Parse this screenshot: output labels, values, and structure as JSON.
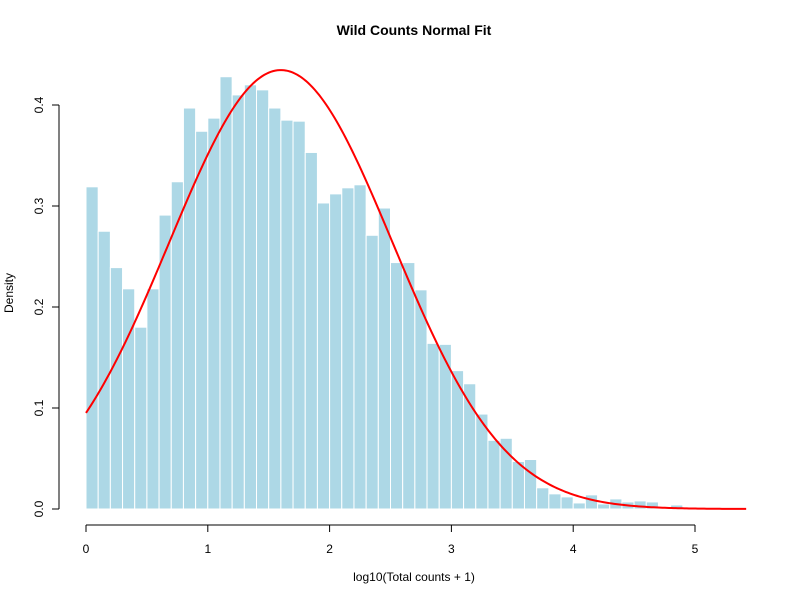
{
  "chart_data": {
    "type": "bar",
    "title": "Wild Counts Normal Fit",
    "xlabel": "log10(Total counts + 1)",
    "ylabel": "Density",
    "xlim": [
      0,
      5.42
    ],
    "ylim": [
      0,
      0.435
    ],
    "x_ticks": [
      "0",
      "1",
      "2",
      "3",
      "4",
      "5"
    ],
    "y_ticks": [
      "0.0",
      "0.1",
      "0.2",
      "0.3",
      "0.4"
    ],
    "bin_width": 0.1,
    "bin_start": 0.0,
    "histogram_density": [
      0.319,
      0.275,
      0.239,
      0.218,
      0.18,
      0.218,
      0.291,
      0.324,
      0.397,
      0.374,
      0.387,
      0.428,
      0.41,
      0.42,
      0.415,
      0.397,
      0.385,
      0.384,
      0.353,
      0.303,
      0.312,
      0.318,
      0.321,
      0.271,
      0.298,
      0.244,
      0.244,
      0.217,
      0.164,
      0.163,
      0.137,
      0.124,
      0.094,
      0.068,
      0.07,
      0.047,
      0.049,
      0.021,
      0.015,
      0.012,
      0.006,
      0.014,
      0.005,
      0.01,
      0.007,
      0.008,
      0.007,
      0.0,
      0.004,
      0.0
    ],
    "series": [
      {
        "type": "normal-curve",
        "mean": 1.6,
        "sd": 0.918
      }
    ],
    "colors": {
      "bars": "#add8e6",
      "bar_border": "#ffffff",
      "curve": "#ff0000",
      "axis": "#000000"
    },
    "grid": false
  }
}
